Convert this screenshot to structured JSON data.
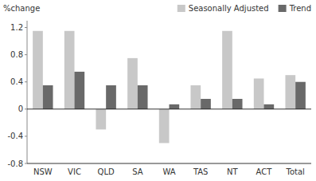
{
  "chart_data": {
    "type": "bar",
    "y_label": "%change",
    "categories": [
      "NSW",
      "VIC",
      "QLD",
      "SA",
      "WA",
      "TAS",
      "NT",
      "ACT",
      "Total"
    ],
    "series": [
      {
        "name": "Seasonally Adjusted",
        "color": "#c8c8c8",
        "values": [
          1.15,
          1.15,
          -0.3,
          0.75,
          -0.5,
          0.35,
          1.15,
          0.45,
          0.5
        ]
      },
      {
        "name": "Trend",
        "color": "#696969",
        "values": [
          0.35,
          0.55,
          0.35,
          0.35,
          0.07,
          0.15,
          0.15,
          0.07,
          0.4
        ]
      }
    ],
    "ylim": [
      -0.8,
      1.3
    ],
    "yticks": [
      -0.8,
      -0.4,
      0,
      0.4,
      0.8,
      1.2
    ],
    "grid": false,
    "legend": "upper right"
  }
}
